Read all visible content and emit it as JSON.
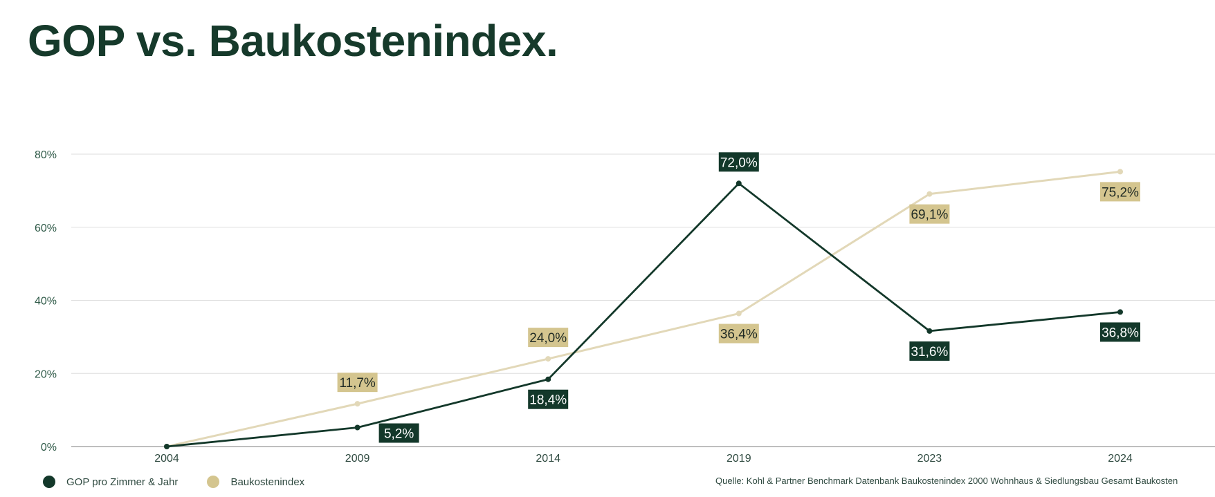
{
  "title": "GOP vs. Baukostenindex.",
  "source": "Quelle:  Kohl & Partner Benchmark Datenbank Baukostenindex 2000 Wohnhaus & Siedlungsbau Gesamt Baukosten",
  "colors": {
    "title": "#163a2b",
    "gop": "#13382a",
    "bau_line": "#e2d8b8",
    "bau_label_bg": "#d4c58f",
    "gridline": "#dedede",
    "axis": "#a9a9a9"
  },
  "chart_data": {
    "type": "line",
    "title": "GOP vs. Baukostenindex.",
    "categories": [
      "2004",
      "2009",
      "2014",
      "2019",
      "2023",
      "2024"
    ],
    "ylim": [
      0,
      80
    ],
    "yticks": [
      0,
      20,
      40,
      60,
      80
    ],
    "ytick_labels": [
      "0%",
      "20%",
      "40%",
      "60%",
      "80%"
    ],
    "grid": true,
    "legend_position": "bottom-left",
    "series": [
      {
        "name": "GOP pro Zimmer & Jahr",
        "values": [
          0,
          5.2,
          18.4,
          72.0,
          31.6,
          36.8
        ],
        "labels": [
          "",
          "5,2%",
          "18,4%",
          "72,0%",
          "31,6%",
          "36,8%"
        ]
      },
      {
        "name": "Baukostenindex",
        "values": [
          0,
          11.7,
          24.0,
          36.4,
          69.1,
          75.2
        ],
        "labels": [
          "",
          "11,7%",
          "24,0%",
          "36,4%",
          "69,1%",
          "75,2%"
        ]
      }
    ]
  }
}
